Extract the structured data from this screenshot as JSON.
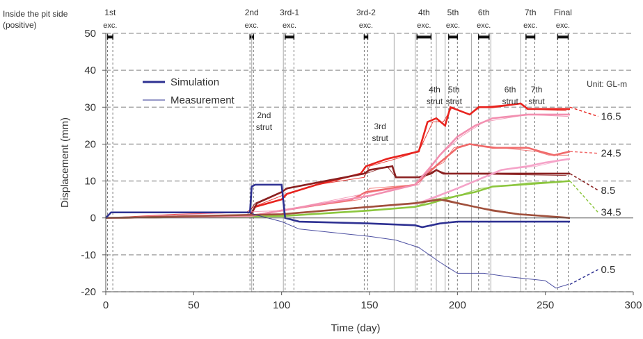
{
  "chart_data": {
    "type": "line",
    "title": "",
    "corner_label": [
      "Inside the pit side",
      "(positive)"
    ],
    "xlabel": "Time (day)",
    "ylabel": "Displacement (mm)",
    "xlim": [
      0,
      300
    ],
    "ylim": [
      -20,
      50
    ],
    "x_ticks": [
      0,
      50,
      100,
      150,
      200,
      250,
      300
    ],
    "y_ticks": [
      -20,
      -10,
      0,
      10,
      20,
      30,
      40,
      50
    ],
    "grid": "horizontal dashed",
    "unit_note": "Unit: GL-m",
    "legend": {
      "position": "top-left",
      "entries": [
        {
          "label": "Simulation",
          "style": "thick"
        },
        {
          "label": "Measurement",
          "style": "thin"
        }
      ]
    },
    "stages": [
      {
        "label": [
          "1st",
          "exc."
        ],
        "lines": [
          1,
          4
        ]
      },
      {
        "label": [
          "2nd",
          "exc."
        ],
        "lines": [
          82,
          84
        ]
      },
      {
        "label": [
          "3rd-1",
          "exc."
        ],
        "lines": [
          102,
          107
        ]
      },
      {
        "label": [
          "3rd-2",
          "exc."
        ],
        "lines": [
          147,
          149
        ]
      },
      {
        "label": [
          "4th",
          "exc."
        ],
        "lines": [
          177,
          185
        ]
      },
      {
        "label": [
          "5th",
          "exc."
        ],
        "lines": [
          195,
          200
        ]
      },
      {
        "label": [
          "6th",
          "exc."
        ],
        "lines": [
          212,
          218
        ]
      },
      {
        "label": [
          "7th",
          "exc."
        ],
        "lines": [
          239,
          244
        ]
      },
      {
        "label": [
          "Final",
          "exc."
        ],
        "lines": [
          257,
          263
        ]
      }
    ],
    "struts": [
      {
        "label": [
          "2nd",
          "strut"
        ],
        "x": 90,
        "y": 27
      },
      {
        "label": [
          "3rd",
          "strut"
        ],
        "x": 156,
        "y": 24
      },
      {
        "label": [
          "4th",
          "strut"
        ],
        "x": 187,
        "y": 34
      },
      {
        "label": [
          "5th",
          "strut"
        ],
        "x": 198,
        "y": 34
      },
      {
        "label": [
          "6th",
          "strut"
        ],
        "x": 230,
        "y": 34
      },
      {
        "label": [
          "7th",
          "strut"
        ],
        "x": 245,
        "y": 34
      }
    ],
    "strut_lines": [
      83,
      101,
      164,
      176,
      188,
      193,
      208,
      219,
      236
    ],
    "series": [
      {
        "name": "16.5",
        "color": "#e8231e",
        "label_y": 27.5,
        "end_y": 30,
        "sim": [
          [
            0,
            0
          ],
          [
            82,
            0.5
          ],
          [
            85,
            3
          ],
          [
            100,
            5
          ],
          [
            103,
            6.5
          ],
          [
            120,
            9
          ],
          [
            145,
            12
          ],
          [
            148,
            14
          ],
          [
            160,
            16
          ],
          [
            178,
            18
          ],
          [
            183,
            26
          ],
          [
            188,
            27
          ],
          [
            193,
            25
          ],
          [
            196,
            30
          ],
          [
            207,
            28
          ],
          [
            212,
            30
          ],
          [
            220,
            30
          ],
          [
            236,
            31
          ],
          [
            240,
            29.5
          ],
          [
            264,
            29.5
          ]
        ],
        "meas": [
          [
            0,
            0
          ],
          [
            40,
            1
          ],
          [
            80,
            1.5
          ],
          [
            84,
            3
          ],
          [
            100,
            6
          ],
          [
            120,
            9
          ],
          [
            147,
            11
          ],
          [
            150,
            14
          ],
          [
            165,
            16
          ],
          [
            178,
            18
          ],
          [
            186,
            26
          ],
          [
            192,
            26
          ],
          [
            197,
            30
          ],
          [
            207,
            28
          ],
          [
            213,
            30
          ],
          [
            236,
            31
          ],
          [
            240,
            29.5
          ],
          [
            262,
            29
          ]
        ]
      },
      {
        "name": "24.5",
        "color": "#f06a6a",
        "label_y": 17.5,
        "end_y": 18,
        "sim": [
          [
            0,
            0
          ],
          [
            82,
            0.5
          ],
          [
            100,
            2
          ],
          [
            140,
            5
          ],
          [
            148,
            7
          ],
          [
            176,
            9
          ],
          [
            190,
            15
          ],
          [
            200,
            19
          ],
          [
            207,
            20
          ],
          [
            220,
            19
          ],
          [
            240,
            19
          ],
          [
            247,
            18
          ],
          [
            255,
            17
          ],
          [
            264,
            18
          ]
        ],
        "meas": [
          [
            0,
            0
          ],
          [
            80,
            0.5
          ],
          [
            100,
            2
          ],
          [
            145,
            5
          ],
          [
            150,
            8
          ],
          [
            176,
            9
          ],
          [
            184,
            13
          ],
          [
            192,
            15
          ],
          [
            198,
            19
          ],
          [
            206,
            20
          ],
          [
            225,
            19
          ],
          [
            245,
            18
          ],
          [
            252,
            17
          ],
          [
            263,
            17
          ]
        ]
      },
      {
        "name": "8.5",
        "color": "#8a2020",
        "label_y": 7.5,
        "end_y": 12,
        "sim": [
          [
            0,
            0
          ],
          [
            82,
            0.5
          ],
          [
            86,
            4
          ],
          [
            100,
            7
          ],
          [
            103,
            8
          ],
          [
            125,
            10
          ],
          [
            147,
            12
          ],
          [
            150,
            13
          ],
          [
            163,
            14
          ],
          [
            165,
            11
          ],
          [
            178,
            11
          ],
          [
            185,
            12
          ],
          [
            188,
            13
          ],
          [
            192,
            12
          ],
          [
            205,
            12
          ],
          [
            235,
            12
          ],
          [
            264,
            12
          ]
        ],
        "meas": [
          [
            0,
            0
          ],
          [
            80,
            0.5
          ],
          [
            85,
            4
          ],
          [
            104,
            8
          ],
          [
            125,
            10
          ],
          [
            148,
            12
          ],
          [
            160,
            14
          ],
          [
            165,
            11
          ],
          [
            178,
            11
          ],
          [
            188,
            13
          ],
          [
            194,
            12
          ],
          [
            262,
            11.5
          ]
        ]
      },
      {
        "name": "34.5",
        "color": "#8cc63f",
        "label_y": 1.5,
        "end_y": 10,
        "sim": [
          [
            0,
            0
          ],
          [
            100,
            0.5
          ],
          [
            150,
            2
          ],
          [
            176,
            3
          ],
          [
            185,
            4
          ],
          [
            192,
            5
          ],
          [
            200,
            6
          ],
          [
            210,
            7
          ],
          [
            220,
            8.5
          ],
          [
            236,
            9
          ],
          [
            264,
            10
          ]
        ],
        "meas": [
          [
            0,
            0
          ],
          [
            100,
            0.5
          ],
          [
            176,
            3
          ],
          [
            186,
            5
          ],
          [
            200,
            6
          ],
          [
            213,
            8
          ],
          [
            240,
            9.5
          ],
          [
            263,
            10
          ]
        ]
      },
      {
        "name": "",
        "color": "#f28fb0",
        "label_y": null,
        "end_y": 28,
        "sim": [
          [
            0,
            0
          ],
          [
            82,
            0.5
          ],
          [
            100,
            2
          ],
          [
            150,
            6
          ],
          [
            176,
            9
          ],
          [
            185,
            14
          ],
          [
            190,
            17
          ],
          [
            200,
            22
          ],
          [
            210,
            25
          ],
          [
            220,
            27
          ],
          [
            240,
            28
          ],
          [
            264,
            28
          ]
        ],
        "meas": [
          [
            0,
            0
          ],
          [
            100,
            2
          ],
          [
            152,
            7
          ],
          [
            178,
            9
          ],
          [
            190,
            17
          ],
          [
            202,
            22
          ],
          [
            215,
            26
          ],
          [
            240,
            28
          ],
          [
            263,
            27.5
          ]
        ]
      },
      {
        "name": "",
        "color": "#f5a3c8",
        "label_y": null,
        "end_y": 16,
        "sim": [
          [
            0,
            0
          ],
          [
            100,
            1
          ],
          [
            150,
            3
          ],
          [
            178,
            4
          ],
          [
            200,
            8
          ],
          [
            225,
            13
          ],
          [
            240,
            14
          ],
          [
            250,
            15
          ],
          [
            264,
            16
          ]
        ],
        "meas": [
          [
            0,
            0
          ],
          [
            100,
            1
          ],
          [
            180,
            4
          ],
          [
            205,
            9
          ],
          [
            225,
            13
          ],
          [
            245,
            14
          ],
          [
            263,
            16
          ]
        ]
      },
      {
        "name": "",
        "color": "#a0503c",
        "label_y": null,
        "end_y": 0,
        "sim": [
          [
            0,
            0
          ],
          [
            100,
            1
          ],
          [
            150,
            3
          ],
          [
            176,
            4
          ],
          [
            190,
            5
          ],
          [
            200,
            4
          ],
          [
            210,
            3
          ],
          [
            220,
            2
          ],
          [
            235,
            1
          ],
          [
            250,
            0.5
          ],
          [
            264,
            0
          ]
        ],
        "meas": [
          [
            0,
            0
          ],
          [
            100,
            1
          ],
          [
            178,
            4
          ],
          [
            193,
            5
          ],
          [
            210,
            3
          ],
          [
            236,
            1
          ],
          [
            263,
            0
          ]
        ]
      },
      {
        "name": "0.5",
        "color": "#2e3192",
        "label_y": -14,
        "end_y": -18,
        "sim": [
          [
            0,
            0
          ],
          [
            3,
            1.5
          ],
          [
            82,
            1.5
          ],
          [
            83,
            8.5
          ],
          [
            85,
            9
          ],
          [
            100,
            9
          ],
          [
            102,
            0
          ],
          [
            110,
            -1
          ],
          [
            150,
            -1.5
          ],
          [
            176,
            -2
          ],
          [
            180,
            -2.5
          ],
          [
            190,
            -1.5
          ],
          [
            200,
            -1
          ],
          [
            230,
            -1
          ],
          [
            264,
            -1
          ]
        ],
        "meas": [
          [
            0,
            0
          ],
          [
            3,
            1.5
          ],
          [
            82,
            1.5
          ],
          [
            84,
            1
          ],
          [
            100,
            -1
          ],
          [
            110,
            -3
          ],
          [
            130,
            -4
          ],
          [
            150,
            -5
          ],
          [
            165,
            -6
          ],
          [
            178,
            -8
          ],
          [
            190,
            -12
          ],
          [
            200,
            -15
          ],
          [
            215,
            -15
          ],
          [
            230,
            -16
          ],
          [
            250,
            -17
          ],
          [
            256,
            -19
          ],
          [
            263,
            -18
          ]
        ]
      }
    ]
  }
}
